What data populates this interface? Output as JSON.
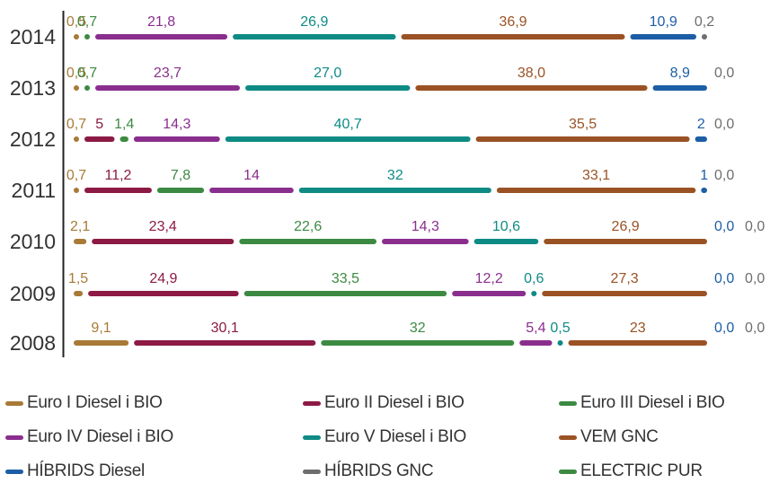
{
  "chart_data": {
    "type": "bar",
    "orientation": "horizontal-stacked",
    "categories": [
      "2014",
      "2013",
      "2012",
      "2011",
      "2010",
      "2009",
      "2008"
    ],
    "series": [
      {
        "name": "Euro I Diesel i BIO",
        "color": "#a87a36",
        "labels": [
          "0,5",
          "0,5",
          "0,7",
          "0,7",
          "2,1",
          "1,5",
          "9,1"
        ],
        "values": [
          0.5,
          0.5,
          0.7,
          0.7,
          2.1,
          1.5,
          9.1
        ]
      },
      {
        "name": "Euro II Diesel i BIO",
        "color": "#8c1a44",
        "labels": [
          "",
          "",
          "5",
          "11,2",
          "23,4",
          "24,9",
          "30,1"
        ],
        "values": [
          0,
          0,
          5,
          11.2,
          23.4,
          24.9,
          30.1
        ]
      },
      {
        "name": "Euro III Diesel i BIO",
        "color": "#3c8a42",
        "labels": [
          "0,7",
          "0,7",
          "1,4",
          "7,8",
          "22,6",
          "33,5",
          "32"
        ],
        "values": [
          0.7,
          0.7,
          1.4,
          7.8,
          22.6,
          33.5,
          32
        ]
      },
      {
        "name": "Euro IV Diesel i BIO",
        "color": "#8a2e8e",
        "labels": [
          "21,8",
          "23,7",
          "14,3",
          "14",
          "14,3",
          "12,2",
          "5,4"
        ],
        "values": [
          21.8,
          23.7,
          14.3,
          14,
          14.3,
          12.2,
          5.4
        ]
      },
      {
        "name": "Euro V Diesel i BIO",
        "color": "#0e8b84",
        "labels": [
          "26,9",
          "27,0",
          "40,7",
          "32",
          "10,6",
          "0,6",
          "0,5"
        ],
        "values": [
          26.9,
          27.0,
          40.7,
          32,
          10.6,
          0.6,
          0.5
        ]
      },
      {
        "name": "VEM GNC",
        "color": "#9a5224",
        "labels": [
          "36,9",
          "38,0",
          "35,5",
          "33,1",
          "26,9",
          "27,3",
          "23"
        ],
        "values": [
          36.9,
          38.0,
          35.5,
          33.1,
          26.9,
          27.3,
          23
        ]
      },
      {
        "name": "HÍBRIDS Diesel",
        "color": "#1c5ea6",
        "labels": [
          "10,9",
          "8,9",
          "2",
          "1",
          "0,0",
          "0,0",
          "0,0"
        ],
        "values": [
          10.9,
          8.9,
          2,
          1,
          0,
          0,
          0
        ]
      },
      {
        "name": "HÍBRIDS GNC",
        "color": "#6e6e6e",
        "labels": [
          "0,2",
          "0,0",
          "0,0",
          "0,0",
          "0,0",
          "0,0",
          "0,0"
        ],
        "values": [
          0.2,
          0,
          0,
          0,
          0,
          0,
          0
        ]
      },
      {
        "name": "ELECTRIC PUR",
        "color": "#3c8a42",
        "labels": [
          "",
          "",
          "",
          "",
          "",
          "",
          ""
        ],
        "values": [
          0,
          0,
          0,
          0,
          0,
          0,
          0
        ]
      }
    ],
    "legend_position": "bottom",
    "grid": false
  }
}
